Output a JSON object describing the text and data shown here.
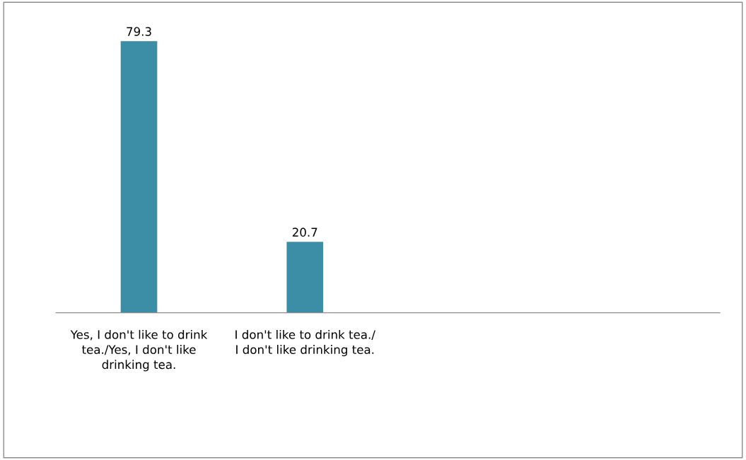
{
  "chart_data": {
    "type": "bar",
    "categories": [
      "Yes, I don't like to drink tea./Yes, I don't like drinking tea.",
      "I don't like to drink tea./ I don't like drinking tea."
    ],
    "values": [
      79.3,
      20.7
    ],
    "color": "#3b8ea5",
    "data_labels": true,
    "grid": false,
    "legend": false
  }
}
